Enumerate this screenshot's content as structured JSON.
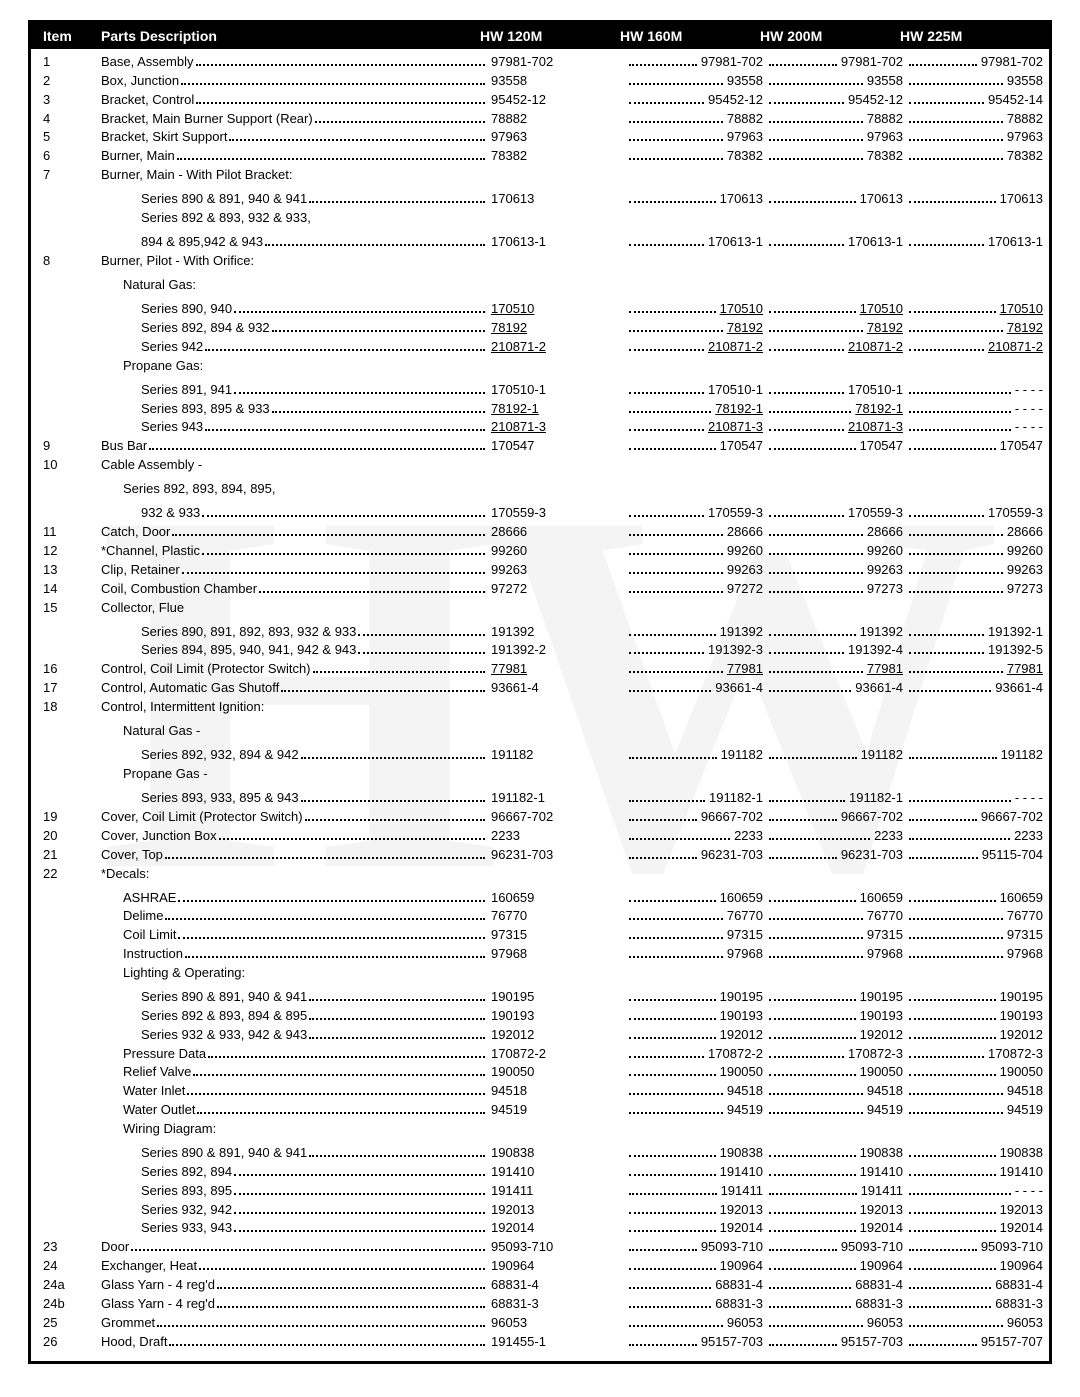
{
  "header": {
    "item": "Item",
    "desc": "Parts Description",
    "m1": "HW 120M",
    "m2": "HW 160M",
    "m3": "HW 200M",
    "m4": "HW 225M"
  },
  "rows": [
    {
      "item": "1",
      "desc": "Base, Assembly",
      "v": [
        "97981-702",
        "97981-702",
        "97981-702",
        "97981-702"
      ]
    },
    {
      "item": "2",
      "desc": "Box, Junction",
      "v": [
        "93558",
        "93558",
        "93558",
        "93558"
      ]
    },
    {
      "item": "3",
      "desc": "Bracket, Control",
      "v": [
        "95452-12",
        "95452-12",
        "95452-12",
        "95452-14"
      ]
    },
    {
      "item": "4",
      "desc": "Bracket, Main Burner Support (Rear)",
      "v": [
        "78882",
        "78882",
        "78882",
        "78882"
      ]
    },
    {
      "item": "5",
      "desc": "Bracket, Skirt Support",
      "v": [
        "97963",
        "97963",
        "97963",
        "97963"
      ]
    },
    {
      "item": "6",
      "desc": "Burner, Main",
      "v": [
        "78382",
        "78382",
        "78382",
        "78382"
      ]
    },
    {
      "item": "7",
      "desc": "Burner, Main - With Pilot Bracket:",
      "novals": true
    },
    {
      "ind": 2,
      "desc": "Series 890 & 891, 940 & 941",
      "v": [
        "170613",
        "170613",
        "170613",
        "170613"
      ]
    },
    {
      "ind": 2,
      "desc": "Series 892 & 893, 932 & 933,",
      "novals": true,
      "trailingdots": true
    },
    {
      "ind": 2,
      "desc": "894 & 895,942 & 943",
      "v": [
        "170613-1",
        "170613-1",
        "170613-1",
        "170613-1"
      ]
    },
    {
      "item": "8",
      "desc": "Burner, Pilot - With Orifice:",
      "novals": true
    },
    {
      "ind": 1,
      "desc": "Natural Gas:",
      "novals": true
    },
    {
      "ind": 2,
      "desc": "Series 890, 940",
      "v": [
        "170510",
        "170510",
        "170510",
        "170510"
      ],
      "u": true
    },
    {
      "ind": 2,
      "desc": "Series 892, 894 & 932",
      "v": [
        "78192",
        "78192",
        "78192",
        "78192"
      ],
      "u": true
    },
    {
      "ind": 2,
      "desc": "Series 942",
      "v": [
        "210871-2",
        "210871-2",
        "210871-2",
        "210871-2"
      ],
      "u": true
    },
    {
      "ind": 1,
      "desc": "Propane Gas:",
      "novals": true
    },
    {
      "ind": 2,
      "desc": "Series 891, 941",
      "v": [
        "170510-1",
        "170510-1",
        "170510-1",
        "- - - -"
      ]
    },
    {
      "ind": 2,
      "desc": "Series 893, 895 & 933",
      "v": [
        "78192-1",
        "78192-1",
        "78192-1",
        "- - - -"
      ],
      "u": [
        true,
        true,
        true,
        false
      ]
    },
    {
      "ind": 2,
      "desc": "Series 943",
      "v": [
        "210871-3",
        "210871-3",
        "210871-3",
        "- - - -"
      ],
      "u": [
        true,
        true,
        true,
        false
      ]
    },
    {
      "item": "9",
      "desc": "Bus Bar",
      "v": [
        "170547",
        "170547",
        "170547",
        "170547"
      ]
    },
    {
      "item": "10",
      "desc": "Cable Assembly -",
      "novals": true
    },
    {
      "ind": 1,
      "desc": "Series  892, 893, 894, 895,",
      "novals": true
    },
    {
      "ind": 2,
      "desc": "932 & 933",
      "v": [
        "170559-3",
        "170559-3",
        "170559-3",
        "170559-3"
      ]
    },
    {
      "item": "11",
      "desc": "Catch, Door",
      "v": [
        "28666",
        "28666",
        "28666",
        "28666"
      ]
    },
    {
      "item": "12",
      "desc": "*Channel, Plastic",
      "v": [
        "99260",
        "99260",
        "99260",
        "99260"
      ]
    },
    {
      "item": "13",
      "desc": "Clip, Retainer",
      "v": [
        "99263",
        "99263",
        "99263",
        "99263"
      ]
    },
    {
      "item": "14",
      "desc": "Coil, Combustion Chamber",
      "v": [
        "97272",
        "97272",
        "97273",
        "97273"
      ]
    },
    {
      "item": "15",
      "desc": "Collector, Flue",
      "novals": true
    },
    {
      "ind": 2,
      "desc": "Series 890, 891, 892, 893, 932 & 933",
      "v": [
        "191392",
        "191392",
        "191392",
        "191392-1"
      ]
    },
    {
      "ind": 2,
      "desc": "Series 894, 895, 940, 941, 942 & 943",
      "v": [
        "191392-2",
        "191392-3",
        "191392-4",
        "191392-5"
      ]
    },
    {
      "item": "16",
      "desc": "Control, Coil Limit (Protector Switch)",
      "v": [
        "77981",
        "77981",
        "77981",
        "77981"
      ],
      "u": true
    },
    {
      "item": "17",
      "desc": "Control, Automatic Gas Shutoff",
      "v": [
        "93661-4",
        "93661-4",
        "93661-4",
        "93661-4"
      ]
    },
    {
      "item": "18",
      "desc": "Control, Intermittent Ignition:",
      "novals": true
    },
    {
      "ind": 1,
      "desc": "Natural Gas -",
      "novals": true
    },
    {
      "ind": 2,
      "desc": "Series 892, 932, 894 & 942",
      "v": [
        "191182",
        "191182",
        "191182",
        "191182"
      ]
    },
    {
      "ind": 1,
      "desc": "Propane Gas -",
      "novals": true
    },
    {
      "ind": 2,
      "desc": "Series 893, 933, 895 & 943",
      "v": [
        "191182-1",
        "191182-1",
        "191182-1",
        "- - - -"
      ]
    },
    {
      "item": "19",
      "desc": "Cover, Coil Limit (Protector Switch)",
      "v": [
        "96667-702",
        "96667-702",
        "96667-702",
        "96667-702"
      ]
    },
    {
      "item": "20",
      "desc": "Cover, Junction Box",
      "v": [
        "2233",
        "2233",
        "2233",
        "2233"
      ]
    },
    {
      "item": "21",
      "desc": "Cover, Top",
      "v": [
        "96231-703",
        "96231-703",
        "96231-703",
        "95115-704"
      ]
    },
    {
      "item": "22",
      "desc": "*Decals:",
      "novals": true
    },
    {
      "ind": 1,
      "desc": "ASHRAE",
      "v": [
        "160659",
        "160659",
        "160659",
        "160659"
      ]
    },
    {
      "ind": 1,
      "desc": "Delime",
      "v": [
        "76770",
        "76770",
        "76770",
        "76770"
      ]
    },
    {
      "ind": 1,
      "desc": "Coil Limit",
      "v": [
        "97315",
        "97315",
        "97315",
        "97315"
      ]
    },
    {
      "ind": 1,
      "desc": "Instruction",
      "v": [
        "97968",
        "97968",
        "97968",
        "97968"
      ]
    },
    {
      "ind": 1,
      "desc": "Lighting & Operating:",
      "novals": true
    },
    {
      "ind": 2,
      "desc": "Series 890 & 891, 940 & 941",
      "v": [
        "190195",
        "190195",
        "190195",
        "190195"
      ]
    },
    {
      "ind": 2,
      "desc": "Series 892 & 893, 894 & 895",
      "v": [
        "190193",
        "190193",
        "190193",
        "190193"
      ]
    },
    {
      "ind": 2,
      "desc": "Series 932 & 933, 942 & 943",
      "v": [
        "192012",
        "192012",
        "192012",
        "192012"
      ]
    },
    {
      "ind": 1,
      "desc": "Pressure Data",
      "v": [
        "170872-2",
        "170872-2",
        "170872-3",
        "170872-3"
      ]
    },
    {
      "ind": 1,
      "desc": "Relief Valve",
      "v": [
        "190050",
        "190050",
        "190050",
        "190050"
      ]
    },
    {
      "ind": 1,
      "desc": "Water Inlet",
      "v": [
        "94518",
        "94518",
        "94518",
        "94518"
      ]
    },
    {
      "ind": 1,
      "desc": "Water Outlet",
      "v": [
        "94519",
        "94519",
        "94519",
        "94519"
      ]
    },
    {
      "ind": 1,
      "desc": "Wiring Diagram:",
      "novals": true
    },
    {
      "ind": 2,
      "desc": "Series 890 & 891, 940 & 941",
      "v": [
        "190838",
        "190838",
        "190838",
        "190838"
      ]
    },
    {
      "ind": 2,
      "desc": "Series 892, 894",
      "v": [
        "191410",
        "191410",
        "191410",
        "191410"
      ]
    },
    {
      "ind": 2,
      "desc": "Series 893, 895",
      "v": [
        "191411",
        "191411",
        "191411",
        "- - - -"
      ]
    },
    {
      "ind": 2,
      "desc": "Series 932, 942",
      "v": [
        "192013",
        "192013",
        "192013",
        "192013"
      ]
    },
    {
      "ind": 2,
      "desc": "Series 933, 943",
      "v": [
        "192014",
        "192014",
        "192014",
        "192014"
      ]
    },
    {
      "item": "23",
      "desc": "Door",
      "v": [
        "95093-710",
        "95093-710",
        "95093-710",
        "95093-710"
      ]
    },
    {
      "item": "24",
      "desc": "Exchanger, Heat",
      "v": [
        "190964",
        "190964",
        "190964",
        "190964"
      ]
    },
    {
      "item": "24a",
      "desc": "Glass Yarn - 4 reg'd",
      "v": [
        "68831-4",
        "68831-4",
        "68831-4",
        "68831-4"
      ]
    },
    {
      "item": "24b",
      "desc": "Glass Yarn - 4 reg'd",
      "v": [
        "68831-3",
        "68831-3",
        "68831-3",
        "68831-3"
      ]
    },
    {
      "item": "25",
      "desc": "Grommet",
      "v": [
        "96053",
        "96053",
        "96053",
        "96053"
      ]
    },
    {
      "item": "26",
      "desc": "Hood, Draft",
      "v": [
        "191455-1",
        "95157-703",
        "95157-703",
        "95157-707"
      ]
    }
  ]
}
